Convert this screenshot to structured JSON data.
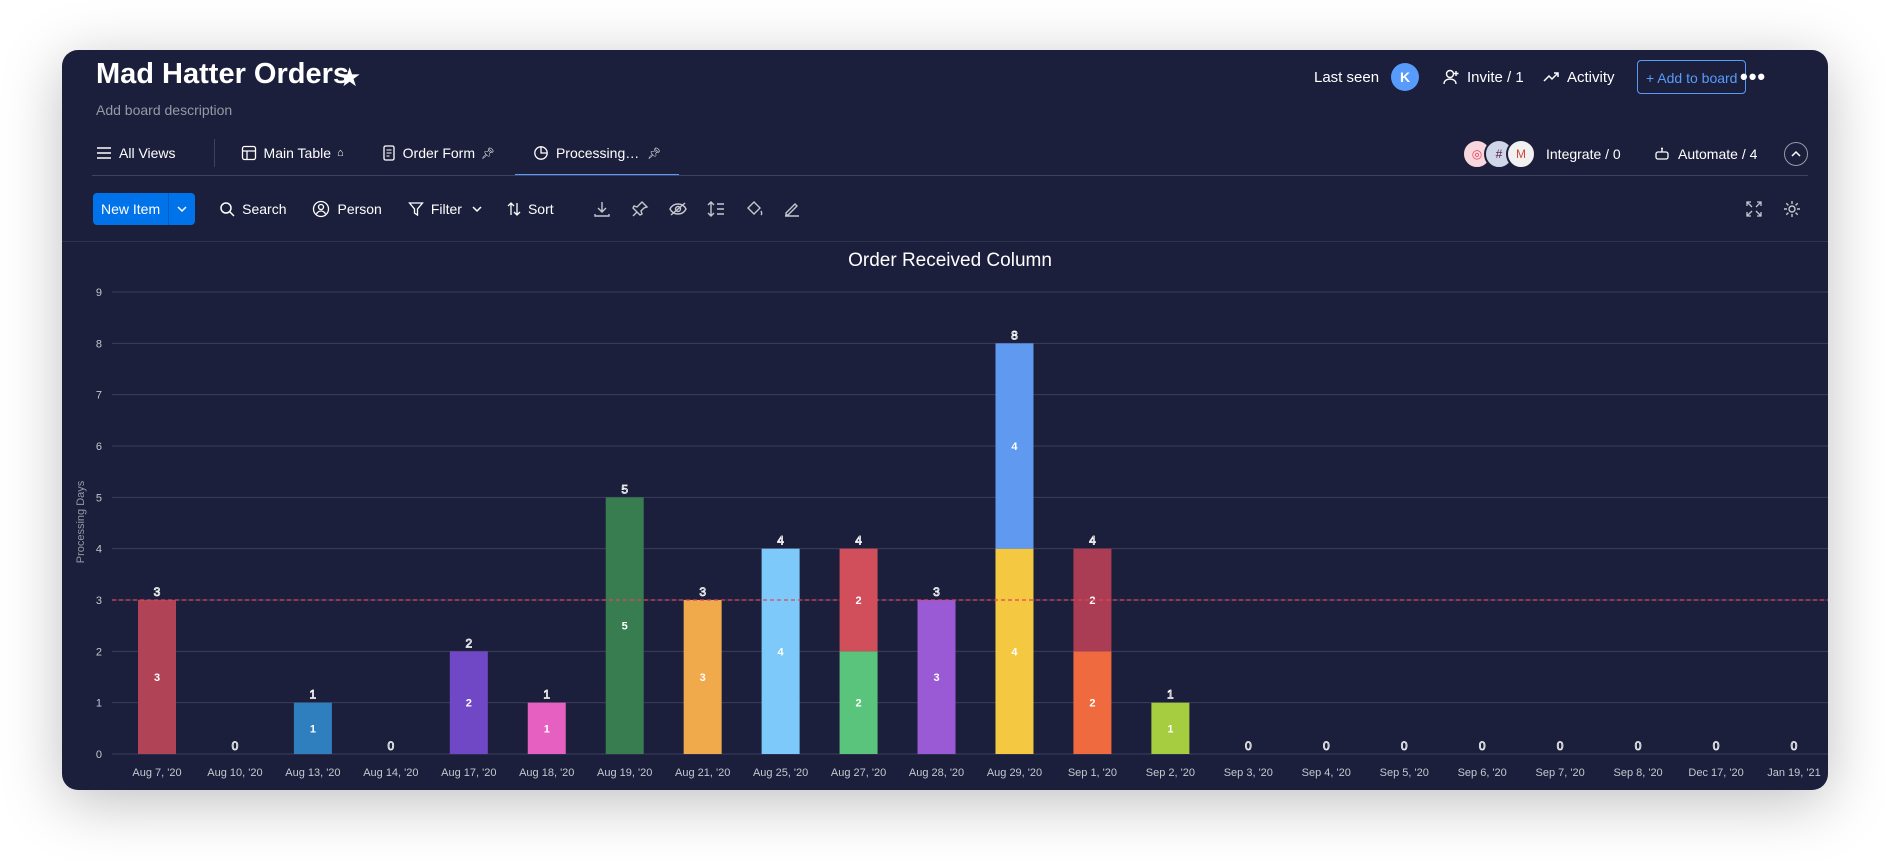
{
  "board": {
    "title": "Mad Hatter Orders",
    "description": "Add board description",
    "last_seen_label": "Last seen",
    "last_seen_avatar": "K",
    "invite_label": "Invite / 1",
    "activity_label": "Activity",
    "add_to_board_label": "+ Add to board"
  },
  "tabs": [
    {
      "label": "All Views",
      "icon": "menu-icon"
    },
    {
      "label": "Main Table",
      "icon": "table-icon",
      "pin": "home-icon"
    },
    {
      "label": "Order Form",
      "icon": "form-icon",
      "pin": "pin-icon"
    },
    {
      "label": "Processing…",
      "icon": "chart-icon",
      "pin": "pin-icon",
      "active": true
    }
  ],
  "integrate_label": "Integrate / 0",
  "automate_label": "Automate / 4",
  "toolbar": {
    "new_item_label": "New Item",
    "search_label": "Search",
    "person_label": "Person",
    "filter_label": "Filter",
    "sort_label": "Sort"
  },
  "colors": {
    "background": "#1c1f3b",
    "accent": "#579bfc",
    "primary_button": "#0073ea",
    "threshold_line": "#e2445c"
  },
  "chart_data": {
    "type": "bar",
    "stacked": true,
    "title": "Order Received Column",
    "xlabel": "",
    "ylabel": "Processing Days",
    "ylim": [
      0,
      9
    ],
    "yticks": [
      0,
      1,
      2,
      3,
      4,
      5,
      6,
      7,
      8,
      9
    ],
    "grid": true,
    "threshold": 3,
    "categories": [
      "Aug 7, '20",
      "Aug 10, '20",
      "Aug 13, '20",
      "Aug 14, '20",
      "Aug 17, '20",
      "Aug 18, '20",
      "Aug 19, '20",
      "Aug 21, '20",
      "Aug 25, '20",
      "Aug 27, '20",
      "Aug 28, '20",
      "Aug 29, '20",
      "Sep 1, '20",
      "Sep 2, '20",
      "Sep 3, '20",
      "Sep 4, '20",
      "Sep 5, '20",
      "Sep 6, '20",
      "Sep 7, '20",
      "Sep 8, '20",
      "Dec 17, '20",
      "Jan 19, '21"
    ],
    "totals": [
      3,
      0,
      1,
      0,
      2,
      1,
      5,
      3,
      4,
      4,
      3,
      8,
      4,
      1,
      0,
      0,
      0,
      0,
      0,
      0,
      0,
      0
    ],
    "segments": [
      [
        {
          "value": 3,
          "color": "#b04356"
        }
      ],
      [],
      [
        {
          "value": 1,
          "color": "#2f7fbf"
        }
      ],
      [],
      [
        {
          "value": 2,
          "color": "#7048c6"
        }
      ],
      [
        {
          "value": 1,
          "color": "#e660c2"
        }
      ],
      [
        {
          "value": 5,
          "color": "#377d50"
        }
      ],
      [
        {
          "value": 3,
          "color": "#f0a94b"
        }
      ],
      [
        {
          "value": 4,
          "color": "#7cc9fa"
        }
      ],
      [
        {
          "value": 2,
          "color": "#5ac47d"
        },
        {
          "value": 2,
          "color": "#d14f5b"
        }
      ],
      [
        {
          "value": 3,
          "color": "#9a5ad6"
        }
      ],
      [
        {
          "value": 4,
          "color": "#f5c842"
        },
        {
          "value": 4,
          "color": "#5f99f0"
        }
      ],
      [
        {
          "value": 2,
          "color": "#ef6a3e"
        },
        {
          "value": 2,
          "color": "#aa3d53"
        }
      ],
      [
        {
          "value": 1,
          "color": "#a6cc3f"
        }
      ],
      [],
      [],
      [],
      [],
      [],
      [],
      [],
      []
    ]
  }
}
